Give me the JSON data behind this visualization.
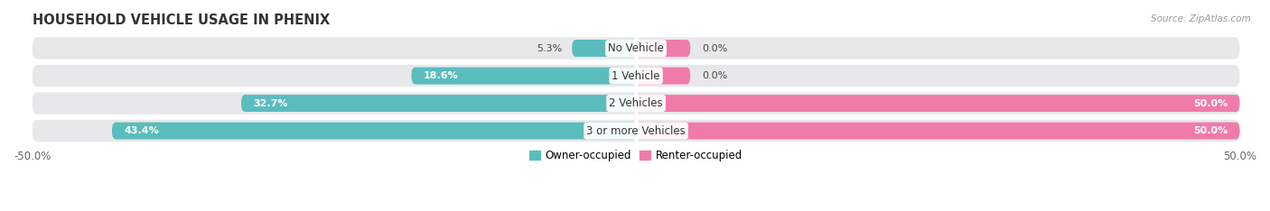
{
  "title": "HOUSEHOLD VEHICLE USAGE IN PHENIX",
  "source": "Source: ZipAtlas.com",
  "categories": [
    "No Vehicle",
    "1 Vehicle",
    "2 Vehicles",
    "3 or more Vehicles"
  ],
  "owner_values": [
    5.3,
    18.6,
    32.7,
    43.4
  ],
  "renter_values": [
    0.0,
    0.0,
    50.0,
    50.0
  ],
  "owner_color": "#5bbcbd",
  "renter_color": "#f07bab",
  "bg_bar_color": "#e8e8eb",
  "owner_label": "Owner-occupied",
  "renter_label": "Renter-occupied",
  "xlim": [
    -50,
    50
  ],
  "background_color": "#ffffff",
  "bar_height": 0.62,
  "title_fontsize": 10.5,
  "label_fontsize": 8.5,
  "tick_fontsize": 8.5,
  "value_fontsize": 8.0
}
